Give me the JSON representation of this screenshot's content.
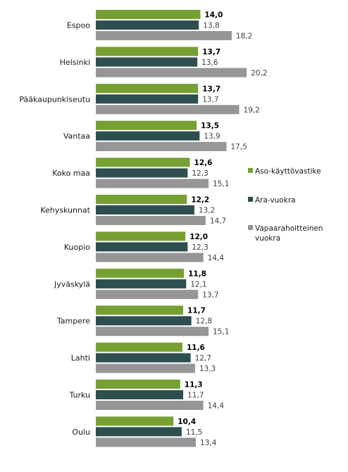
{
  "chart_data": {
    "type": "bar",
    "orientation": "horizontal",
    "categories": [
      "Espoo",
      "Helsinki",
      "Pääkaupunkiseutu",
      "Vantaa",
      "Koko maa",
      "Kehyskunnat",
      "Kuopio",
      "Jyväskylä",
      "Tampere",
      "Lahti",
      "Turku",
      "Oulu"
    ],
    "series": [
      {
        "name": "Aso-käyttövastike",
        "color": "#77a033",
        "values": [
          14.0,
          13.7,
          13.7,
          13.5,
          12.6,
          12.2,
          12.0,
          11.8,
          11.7,
          11.6,
          11.3,
          10.4
        ],
        "labels": [
          "14,0",
          "13,7",
          "13,7",
          "13,5",
          "12,6",
          "12,2",
          "12,0",
          "11,8",
          "11,7",
          "11,6",
          "11,3",
          "10,4"
        ]
      },
      {
        "name": "Ara-vuokra",
        "color": "#2e4f50",
        "values": [
          13.8,
          13.6,
          13.7,
          13.9,
          12.3,
          13.2,
          12.3,
          12.1,
          12.8,
          12.7,
          11.7,
          11.5
        ],
        "labels": [
          "13,8",
          "13,6",
          "13,7",
          "13,9",
          "12,3",
          "13,2",
          "12,3",
          "12,1",
          "12,8",
          "12,7",
          "11,7",
          "11,5"
        ]
      },
      {
        "name": "Vapaarahoitteinen vuokra",
        "color": "#969696",
        "values": [
          18.2,
          20.2,
          19.2,
          17.5,
          15.1,
          14.7,
          14.4,
          13.7,
          15.1,
          13.3,
          14.4,
          13.4
        ],
        "labels": [
          "18,2",
          "20,2",
          "19,2",
          "17,5",
          "15,1",
          "14,7",
          "14,4",
          "13,7",
          "15,1",
          "13,3",
          "14,4",
          "13,4"
        ]
      }
    ],
    "legend": {
      "placement": "right",
      "entries": [
        {
          "lines": [
            "Aso-käyttövastike"
          ],
          "color": "#77a033"
        },
        {
          "lines": [
            "Ara-vuokra"
          ],
          "color": "#2e4f50"
        },
        {
          "lines": [
            "Vapaarahoitteinen",
            "vuokra"
          ],
          "color": "#969696"
        }
      ]
    },
    "xlim": [
      0,
      25
    ],
    "grid": false,
    "title": "",
    "xlabel": "",
    "ylabel": ""
  }
}
